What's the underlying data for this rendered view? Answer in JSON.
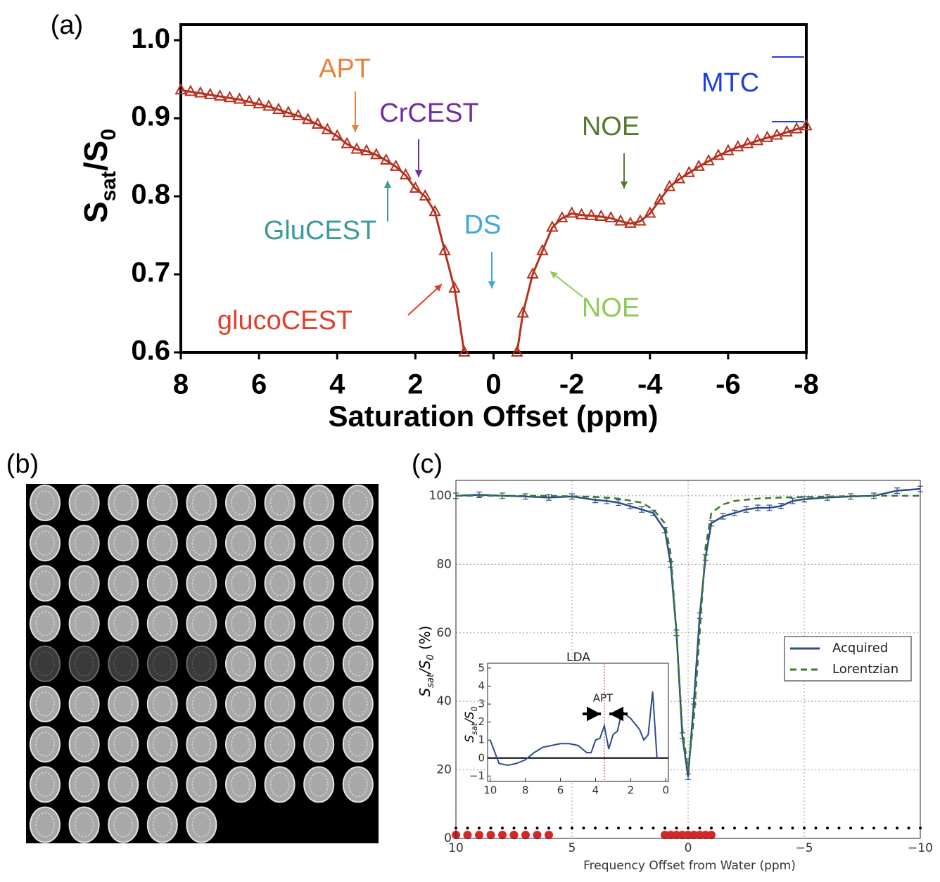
{
  "panel_labels": [
    "(a)",
    "(b)",
    "(c)"
  ],
  "chart_data": [
    {
      "type": "line",
      "x_label": "Saturation Offset (ppm)",
      "y_label": [
        "S",
        "sat",
        "/S",
        "0"
      ],
      "x": [
        8,
        7.75,
        7.5,
        7.25,
        7,
        6.75,
        6.5,
        6.25,
        6,
        5.75,
        5.5,
        5.25,
        5,
        4.75,
        4.5,
        4.25,
        4,
        3.75,
        3.5,
        3.25,
        3,
        2.75,
        2.5,
        2.25,
        2,
        1.75,
        1.5,
        1.25,
        1,
        0.75,
        0,
        -0.6,
        -0.75,
        -1,
        -1.25,
        -1.5,
        -1.75,
        -2,
        -2.25,
        -2.5,
        -2.75,
        -3,
        -3.25,
        -3.5,
        -3.75,
        -4,
        -4.25,
        -4.5,
        -4.75,
        -5,
        -5.25,
        -5.5,
        -5.75,
        -6,
        -6.25,
        -6.5,
        -6.75,
        -7,
        -7.25,
        -7.5,
        -7.75,
        -8
      ],
      "series": [
        {
          "color": "#b5301d",
          "marker": "triangle",
          "values": [
            0.936,
            0.934,
            0.932,
            0.93,
            0.928,
            0.926,
            0.924,
            0.921,
            0.918,
            0.915,
            0.911,
            0.907,
            0.903,
            0.898,
            0.892,
            0.885,
            0.877,
            0.867,
            0.86,
            0.858,
            0.853,
            0.846,
            0.838,
            0.827,
            0.81,
            0.8,
            0.78,
            0.73,
            0.682,
            0.6,
            null,
            0.6,
            0.65,
            0.7,
            0.73,
            0.76,
            0.772,
            0.778,
            0.776,
            0.775,
            0.774,
            0.772,
            0.768,
            0.765,
            0.768,
            0.778,
            0.795,
            0.812,
            0.822,
            0.83,
            0.838,
            0.845,
            0.852,
            0.858,
            0.863,
            0.867,
            0.871,
            0.875,
            0.878,
            0.882,
            0.886,
            0.89
          ]
        }
      ],
      "xlim": [
        8,
        -8
      ],
      "ylim": [
        0.6,
        1.02
      ],
      "xticks": [
        8,
        6,
        4,
        2,
        0,
        -2,
        -4,
        -6,
        -8
      ],
      "yticks": [
        0.6,
        0.7,
        0.8,
        0.9,
        {
          "value": 1,
          "label": "1.0"
        }
      ],
      "annotations": [
        {
          "text": "APT",
          "color": "#e8823a"
        },
        {
          "text": "CrCEST",
          "color": "#7030a0"
        },
        {
          "text": "GluCEST",
          "color": "#3a9a9a"
        },
        {
          "text": "DS",
          "color": "#3ea7e0"
        },
        {
          "text": "glucoCEST",
          "color": "#e0402a"
        },
        {
          "text": "NOE",
          "color": "#557a2e"
        },
        {
          "text": "NOE",
          "color": "#8fc95a"
        },
        {
          "text": "MTC",
          "color": "#1f3fdc"
        }
      ]
    },
    {
      "type": "line",
      "x_label": "Frequency Offset from Water (ppm)",
      "y_label": [
        "S",
        "sat",
        "/S",
        "0",
        " (%)"
      ],
      "xlim": [
        10,
        -10
      ],
      "ylim": [
        0,
        104.5
      ],
      "xticks": [
        10,
        5,
        0,
        {
          "value": -5,
          "label": "−5"
        },
        {
          "value": -10,
          "label": "−10"
        }
      ],
      "yticks": [
        0,
        20,
        40,
        60,
        80,
        100
      ],
      "grid": true,
      "legend": "right",
      "series": [
        {
          "name": "Acquired",
          "color": "#2c4d8a",
          "dash": false,
          "x": [
            10,
            9,
            8,
            7,
            6,
            5,
            4,
            3.5,
            3,
            2.5,
            2,
            1.5,
            1,
            0.75,
            0.5,
            0.25,
            0,
            -0.25,
            -0.5,
            -0.75,
            -1,
            -1.5,
            -2,
            -2.5,
            -3,
            -3.5,
            -4,
            -4.5,
            -5,
            -6,
            -7,
            -8,
            -9,
            -10
          ],
          "values": [
            100,
            100.3,
            100,
            99.8,
            99.5,
            99.8,
            98.8,
            98.5,
            98,
            97,
            96,
            95,
            90,
            80,
            60,
            30,
            18,
            40,
            65,
            82,
            92,
            94,
            95,
            96,
            96.5,
            96.5,
            97,
            98.5,
            99,
            99.5,
            99.8,
            100,
            101.5,
            102
          ],
          "errors": [
            0.8,
            0.8,
            0.8,
            0.8,
            0.8,
            0.8,
            0.8,
            0.8,
            0.8,
            0.8,
            0.8,
            0.8,
            0.8,
            0.8,
            0.8,
            0.8,
            0.8,
            0.8,
            0.8,
            0.8,
            0.8,
            0.8,
            0.8,
            0.8,
            0.8,
            0.8,
            0.8,
            0.8,
            0.8,
            0.8,
            0.8,
            0.8,
            0.8,
            0.8
          ]
        },
        {
          "name": "Lorentzian",
          "color": "#3a7a2a",
          "dash": true,
          "x": [
            10,
            8,
            6,
            4,
            3,
            2,
            1.5,
            1,
            0.75,
            0.5,
            0.25,
            0,
            -0.25,
            -0.5,
            -0.75,
            -1,
            -1.5,
            -2,
            -3,
            -4,
            -6,
            -8,
            -10
          ],
          "values": [
            100,
            100,
            100,
            99.7,
            99.2,
            98,
            96,
            92,
            83,
            60,
            32,
            20,
            35,
            60,
            85,
            95,
            97.5,
            98.5,
            99.2,
            99.5,
            99.8,
            100,
            100
          ]
        }
      ],
      "points": [
        {
          "color": "#000000",
          "x": [
            10,
            9.5,
            9,
            8.5,
            8,
            7.5,
            7,
            6.5,
            6,
            5.5,
            5,
            4.5,
            4,
            3.5,
            3,
            2.5,
            2,
            1.5,
            1,
            0.5,
            0,
            -0.5,
            -1,
            -1.5,
            -2,
            -2.5,
            -3,
            -3.5,
            -4,
            -4.5,
            -5,
            -5.5,
            -6,
            -6.5,
            -7,
            -7.5,
            -8,
            -8.5,
            -9,
            -9.5,
            -10
          ],
          "values": [
            3,
            3,
            3,
            3,
            3,
            3,
            3,
            3,
            3,
            3,
            3,
            3,
            3,
            3,
            3,
            3,
            3,
            3,
            3,
            3,
            3,
            3,
            3,
            3,
            3,
            3,
            3,
            3,
            3,
            3,
            3,
            3,
            3,
            3,
            3,
            3,
            3,
            3,
            3,
            3,
            3
          ]
        },
        {
          "color": "#d62728",
          "x": [
            10,
            9.5,
            9,
            8.5,
            8,
            7.5,
            7,
            6.5,
            6,
            1,
            0.75,
            0.5,
            0.25,
            0,
            -0.25,
            -0.5,
            -0.75,
            -1
          ],
          "values": [
            1,
            1,
            1,
            1,
            1,
            1,
            1,
            1,
            1,
            1,
            1,
            1,
            1,
            1,
            1,
            1,
            1,
            1
          ]
        }
      ]
    },
    {
      "type": "line",
      "title": "LDA",
      "y_label": [
        "S",
        "sat",
        "/S",
        "0"
      ],
      "annotation": "APT",
      "xlim": [
        10.15,
        -0.15
      ],
      "ylim": [
        -1.3,
        5.27
      ],
      "xticks": [
        10,
        8,
        6,
        4,
        2,
        0
      ],
      "yticks": [
        {
          "value": -1,
          "label": "−1"
        },
        0,
        1,
        2,
        3,
        4,
        5
      ],
      "marker_line": 3.5,
      "zero_line": 0,
      "series": [
        {
          "color": "#2c4d8a",
          "x": [
            10,
            9.5,
            9,
            8.5,
            8,
            7.5,
            7,
            6.5,
            6,
            5.5,
            5,
            4.5,
            4.25,
            4,
            3.75,
            3.5,
            3.25,
            3,
            2.75,
            2.5,
            2,
            1.5,
            1.25,
            1,
            0.75,
            0.5
          ],
          "values": [
            1.0,
            -0.3,
            -0.4,
            -0.3,
            -0.1,
            0.3,
            0.6,
            0.7,
            0.8,
            0.8,
            0.7,
            0.3,
            0.3,
            1.0,
            1.1,
            1.8,
            0.5,
            1.3,
            1.5,
            2.6,
            2.2,
            1.6,
            1.0,
            1.3,
            3.7,
            0.0
          ]
        }
      ]
    }
  ]
}
